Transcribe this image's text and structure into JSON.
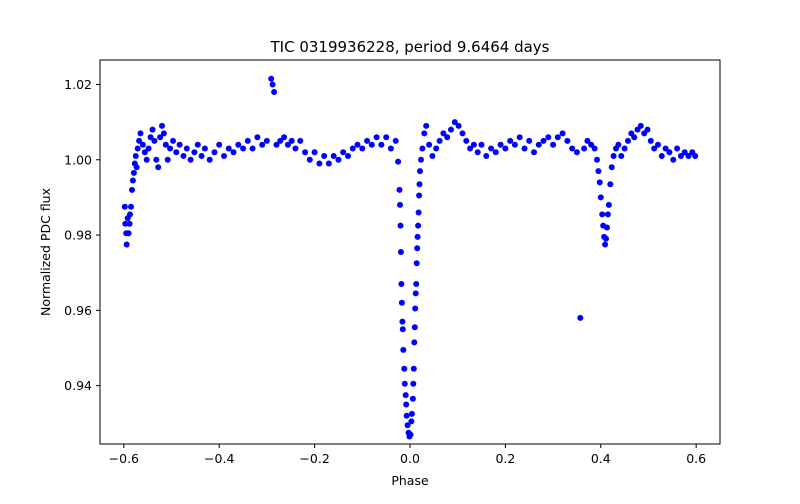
{
  "chart_data": {
    "type": "scatter",
    "title": "TIC 0319936228, period 9.6464 days",
    "xlabel": "Phase",
    "ylabel": "Normalized PDC flux",
    "xlim": [
      -0.65,
      0.65
    ],
    "ylim": [
      0.9245,
      1.0265
    ],
    "xticks": [
      -0.6,
      -0.4,
      -0.2,
      0.0,
      0.2,
      0.4,
      0.6
    ],
    "xtick_labels": [
      "−0.6",
      "−0.4",
      "−0.2",
      "0.0",
      "0.2",
      "0.4",
      "0.6"
    ],
    "yticks": [
      0.94,
      0.96,
      0.98,
      1.0,
      1.02
    ],
    "ytick_labels": [
      "0.94",
      "0.96",
      "0.98",
      "1.00",
      "1.02"
    ],
    "grid": false,
    "marker_color": "#0000ff",
    "series": [
      {
        "points": [
          [
            -0.598,
            0.9875
          ],
          [
            -0.597,
            0.983
          ],
          [
            -0.595,
            0.9805
          ],
          [
            -0.594,
            0.9775
          ],
          [
            -0.592,
            0.9845
          ],
          [
            -0.59,
            0.9805
          ],
          [
            -0.588,
            0.983
          ],
          [
            -0.587,
            0.9855
          ],
          [
            -0.585,
            0.9875
          ],
          [
            -0.583,
            0.992
          ],
          [
            -0.581,
            0.9945
          ],
          [
            -0.579,
            0.9965
          ],
          [
            -0.577,
            0.999
          ],
          [
            -0.575,
            1.001
          ],
          [
            -0.573,
            0.998
          ],
          [
            -0.571,
            1.003
          ],
          [
            -0.568,
            1.005
          ],
          [
            -0.565,
            1.007
          ],
          [
            -0.56,
            1.004
          ],
          [
            -0.556,
            1.002
          ],
          [
            -0.552,
            1.0
          ],
          [
            -0.548,
            1.003
          ],
          [
            -0.544,
            1.006
          ],
          [
            -0.54,
            1.008
          ],
          [
            -0.536,
            1.005
          ],
          [
            -0.532,
            1.0
          ],
          [
            -0.528,
            0.998
          ],
          [
            -0.524,
            1.006
          ],
          [
            -0.52,
            1.009
          ],
          [
            -0.516,
            1.007
          ],
          [
            -0.512,
            1.004
          ],
          [
            -0.508,
            1.0
          ],
          [
            -0.503,
            1.003
          ],
          [
            -0.497,
            1.005
          ],
          [
            -0.49,
            1.002
          ],
          [
            -0.483,
            1.004
          ],
          [
            -0.475,
            1.001
          ],
          [
            -0.468,
            1.003
          ],
          [
            -0.46,
            1.0
          ],
          [
            -0.452,
            1.002
          ],
          [
            -0.445,
            1.004
          ],
          [
            -0.437,
            1.001
          ],
          [
            -0.43,
            1.003
          ],
          [
            -0.42,
            1.0
          ],
          [
            -0.41,
            1.002
          ],
          [
            -0.4,
            1.004
          ],
          [
            -0.39,
            1.001
          ],
          [
            -0.38,
            1.003
          ],
          [
            -0.37,
            1.002
          ],
          [
            -0.36,
            1.004
          ],
          [
            -0.35,
            1.003
          ],
          [
            -0.34,
            1.005
          ],
          [
            -0.33,
            1.003
          ],
          [
            -0.32,
            1.006
          ],
          [
            -0.31,
            1.004
          ],
          [
            -0.3,
            1.005
          ],
          [
            -0.291,
            1.0215
          ],
          [
            -0.288,
            1.02
          ],
          [
            -0.285,
            1.018
          ],
          [
            -0.28,
            1.004
          ],
          [
            -0.272,
            1.005
          ],
          [
            -0.264,
            1.006
          ],
          [
            -0.256,
            1.004
          ],
          [
            -0.248,
            1.005
          ],
          [
            -0.24,
            1.003
          ],
          [
            -0.23,
            1.005
          ],
          [
            -0.22,
            1.002
          ],
          [
            -0.21,
            1.0
          ],
          [
            -0.2,
            1.002
          ],
          [
            -0.19,
            0.999
          ],
          [
            -0.18,
            1.001
          ],
          [
            -0.17,
            0.999
          ],
          [
            -0.16,
            1.001
          ],
          [
            -0.15,
            1.0
          ],
          [
            -0.14,
            1.002
          ],
          [
            -0.13,
            1.001
          ],
          [
            -0.12,
            1.003
          ],
          [
            -0.11,
            1.004
          ],
          [
            -0.1,
            1.003
          ],
          [
            -0.09,
            1.005
          ],
          [
            -0.08,
            1.004
          ],
          [
            -0.07,
            1.006
          ],
          [
            -0.06,
            1.004
          ],
          [
            -0.05,
            1.006
          ],
          [
            -0.04,
            1.003
          ],
          [
            -0.03,
            1.005
          ],
          [
            -0.025,
            0.9995
          ],
          [
            -0.022,
            0.992
          ],
          [
            -0.021,
            0.988
          ],
          [
            -0.02,
            0.9825
          ],
          [
            -0.019,
            0.9755
          ],
          [
            -0.018,
            0.967
          ],
          [
            -0.017,
            0.962
          ],
          [
            -0.016,
            0.957
          ],
          [
            -0.015,
            0.955
          ],
          [
            -0.014,
            0.9495
          ],
          [
            -0.012,
            0.9445
          ],
          [
            -0.011,
            0.9405
          ],
          [
            -0.009,
            0.9375
          ],
          [
            -0.008,
            0.935
          ],
          [
            -0.007,
            0.932
          ],
          [
            -0.005,
            0.9295
          ],
          [
            -0.003,
            0.9275
          ],
          [
            -0.001,
            0.9265
          ],
          [
            0.001,
            0.927
          ],
          [
            0.003,
            0.9305
          ],
          [
            0.004,
            0.9325
          ],
          [
            0.006,
            0.9365
          ],
          [
            0.007,
            0.9405
          ],
          [
            0.008,
            0.9445
          ],
          [
            0.009,
            0.9515
          ],
          [
            0.01,
            0.9555
          ],
          [
            0.011,
            0.9605
          ],
          [
            0.012,
            0.9645
          ],
          [
            0.013,
            0.967
          ],
          [
            0.014,
            0.9725
          ],
          [
            0.015,
            0.9765
          ],
          [
            0.016,
            0.9795
          ],
          [
            0.017,
            0.9825
          ],
          [
            0.018,
            0.986
          ],
          [
            0.019,
            0.9905
          ],
          [
            0.02,
            0.9935
          ],
          [
            0.021,
            0.997
          ],
          [
            0.023,
            1.0
          ],
          [
            0.026,
            1.003
          ],
          [
            0.03,
            1.007
          ],
          [
            0.034,
            1.009
          ],
          [
            0.04,
            1.004
          ],
          [
            0.047,
            1.001
          ],
          [
            0.055,
            1.003
          ],
          [
            0.062,
            1.005
          ],
          [
            0.07,
            1.007
          ],
          [
            0.078,
            1.006
          ],
          [
            0.086,
            1.008
          ],
          [
            0.094,
            1.01
          ],
          [
            0.102,
            1.009
          ],
          [
            0.11,
            1.007
          ],
          [
            0.118,
            1.005
          ],
          [
            0.126,
            1.003
          ],
          [
            0.134,
            1.004
          ],
          [
            0.142,
            1.002
          ],
          [
            0.15,
            1.004
          ],
          [
            0.16,
            1.001
          ],
          [
            0.17,
            1.003
          ],
          [
            0.18,
            1.002
          ],
          [
            0.19,
            1.004
          ],
          [
            0.2,
            1.003
          ],
          [
            0.21,
            1.005
          ],
          [
            0.22,
            1.004
          ],
          [
            0.23,
            1.006
          ],
          [
            0.24,
            1.003
          ],
          [
            0.25,
            1.005
          ],
          [
            0.26,
            1.002
          ],
          [
            0.27,
            1.004
          ],
          [
            0.28,
            1.005
          ],
          [
            0.29,
            1.006
          ],
          [
            0.3,
            1.004
          ],
          [
            0.31,
            1.006
          ],
          [
            0.32,
            1.007
          ],
          [
            0.33,
            1.005
          ],
          [
            0.34,
            1.003
          ],
          [
            0.35,
            1.002
          ],
          [
            0.357,
            0.958
          ],
          [
            0.365,
            1.003
          ],
          [
            0.372,
            1.005
          ],
          [
            0.38,
            1.004
          ],
          [
            0.387,
            1.003
          ],
          [
            0.392,
            1.0
          ],
          [
            0.395,
            0.997
          ],
          [
            0.398,
            0.994
          ],
          [
            0.4,
            0.99
          ],
          [
            0.403,
            0.9855
          ],
          [
            0.405,
            0.9825
          ],
          [
            0.407,
            0.9795
          ],
          [
            0.409,
            0.9775
          ],
          [
            0.411,
            0.979
          ],
          [
            0.413,
            0.982
          ],
          [
            0.415,
            0.9855
          ],
          [
            0.417,
            0.988
          ],
          [
            0.42,
            0.9935
          ],
          [
            0.423,
            0.998
          ],
          [
            0.427,
            1.001
          ],
          [
            0.432,
            1.003
          ],
          [
            0.437,
            1.004
          ],
          [
            0.443,
            1.001
          ],
          [
            0.45,
            1.003
          ],
          [
            0.457,
            1.005
          ],
          [
            0.464,
            1.007
          ],
          [
            0.47,
            1.006
          ],
          [
            0.477,
            1.008
          ],
          [
            0.484,
            1.009
          ],
          [
            0.491,
            1.007
          ],
          [
            0.498,
            1.008
          ],
          [
            0.505,
            1.005
          ],
          [
            0.512,
            1.003
          ],
          [
            0.52,
            1.004
          ],
          [
            0.528,
            1.001
          ],
          [
            0.536,
            1.003
          ],
          [
            0.544,
            1.002
          ],
          [
            0.552,
            1.0
          ],
          [
            0.56,
            1.003
          ],
          [
            0.568,
            1.001
          ],
          [
            0.576,
            1.002
          ],
          [
            0.584,
            1.001
          ],
          [
            0.592,
            1.002
          ],
          [
            0.598,
            1.001
          ]
        ]
      }
    ]
  }
}
